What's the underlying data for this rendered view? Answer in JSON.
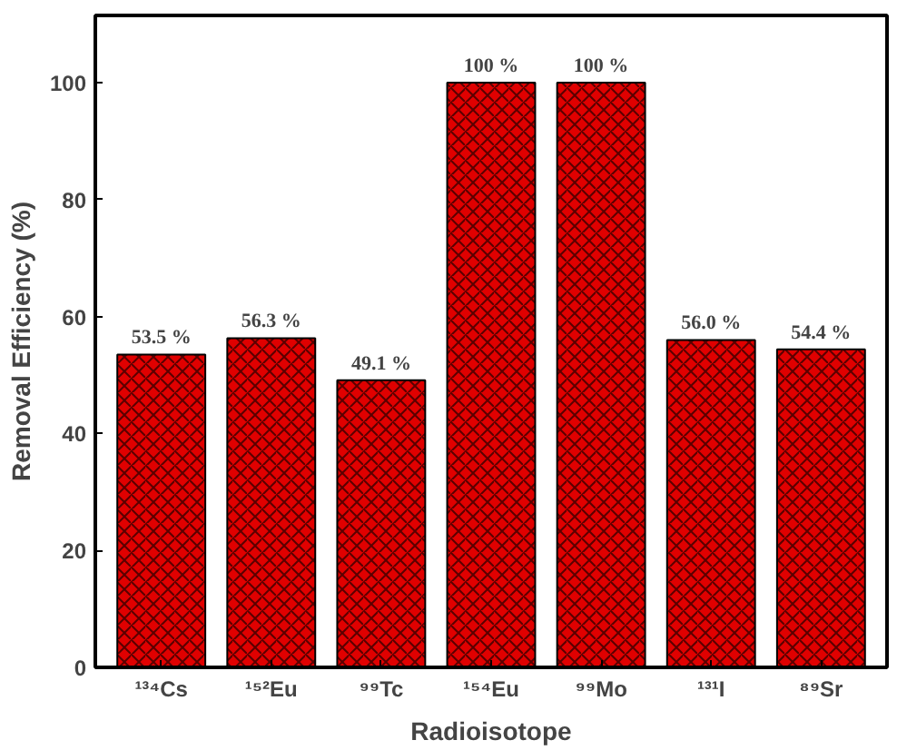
{
  "chart_data": {
    "type": "bar",
    "xlabel": "Radioisotope",
    "ylabel": "Removal Efficiency (%)",
    "categories": [
      "¹³⁴Cs",
      "¹⁵²Eu",
      "⁹⁹Tc",
      "¹⁵⁴Eu",
      "⁹⁹Mo",
      "¹³¹I",
      "⁸⁹Sr"
    ],
    "values": [
      53.5,
      56.3,
      49.1,
      100,
      100,
      56.0,
      54.4
    ],
    "value_labels": [
      "53.5 %",
      "56.3 %",
      "49.1 %",
      "100 %",
      "100 %",
      "56.0 %",
      "54.4 %"
    ],
    "color": "#e00000",
    "ylim": [
      0,
      111.5
    ],
    "yticks": [
      0,
      20,
      40,
      60,
      80,
      100
    ],
    "grid": false
  }
}
